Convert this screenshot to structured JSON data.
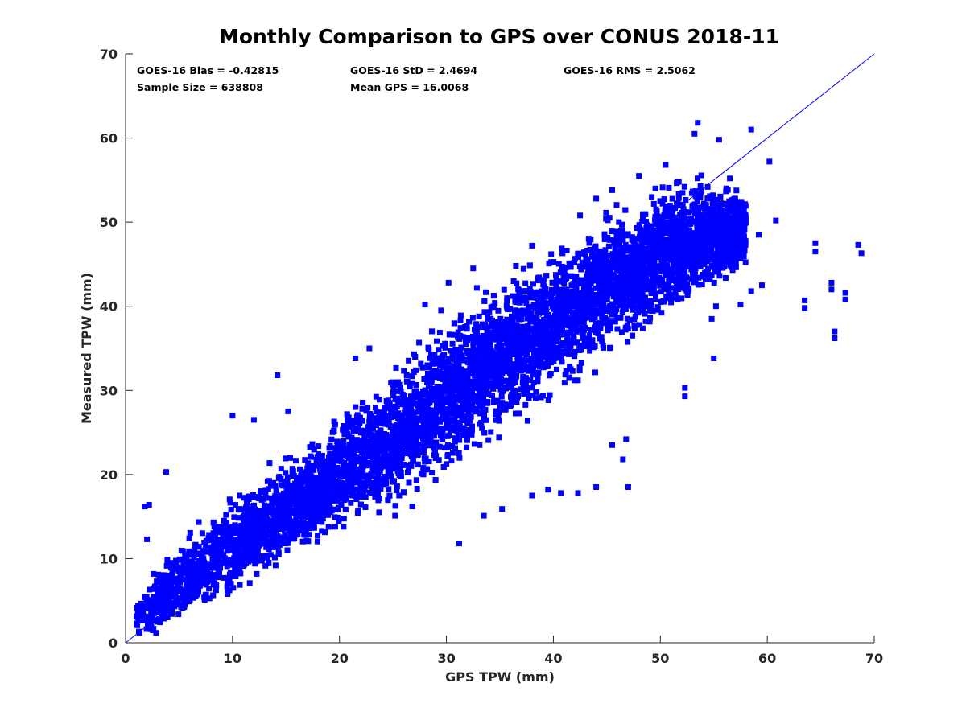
{
  "chart_data": {
    "type": "scatter",
    "title": "Monthly Comparison to GPS over CONUS 2018-11",
    "xlabel": "GPS TPW (mm)",
    "ylabel": "Measured TPW (mm)",
    "xlim": [
      0,
      70
    ],
    "ylim": [
      0,
      70
    ],
    "xticks": [
      "0",
      "10",
      "20",
      "30",
      "40",
      "50",
      "60",
      "70"
    ],
    "yticks": [
      "0",
      "10",
      "20",
      "30",
      "40",
      "50",
      "60",
      "70"
    ],
    "grid": false,
    "marker_color": "#0000ff",
    "line_color": "#0000ff",
    "reference_line": {
      "x": [
        0,
        70
      ],
      "y": [
        0,
        70
      ]
    },
    "stats": {
      "bias": "GOES-16 Bias = -0.42815",
      "std": "GOES-16 StD = 2.4694",
      "rms": "GOES-16 RMS = 2.5062",
      "sample_size": "Sample Size = 638808",
      "mean_gps": "Mean GPS = 16.0068"
    },
    "cloud_spread": [
      [
        1,
        0.2,
        5.5
      ],
      [
        3,
        0.5,
        9.5
      ],
      [
        5,
        1.5,
        12.5
      ],
      [
        8,
        3.0,
        16.5
      ],
      [
        10,
        4.5,
        18.5
      ],
      [
        15,
        8.0,
        23.0
      ],
      [
        20,
        12.0,
        28.0
      ],
      [
        25,
        15.5,
        33.5
      ],
      [
        30,
        19.0,
        40.0
      ],
      [
        35,
        23.0,
        44.5
      ],
      [
        40,
        28.0,
        48.5
      ],
      [
        45,
        32.5,
        52.5
      ],
      [
        50,
        36.5,
        56.0
      ],
      [
        53,
        39.0,
        57.0
      ],
      [
        56,
        41.5,
        55.5
      ],
      [
        58,
        44.0,
        54.0
      ]
    ],
    "outliers": [
      [
        64.5,
        47.5
      ],
      [
        64.5,
        46.5
      ],
      [
        68.5,
        47.3
      ],
      [
        68.8,
        46.3
      ],
      [
        66.0,
        42.8
      ],
      [
        66.0,
        42.0
      ],
      [
        67.3,
        41.6
      ],
      [
        67.3,
        40.8
      ],
      [
        63.5,
        40.7
      ],
      [
        63.5,
        39.8
      ],
      [
        66.3,
        37.0
      ],
      [
        66.3,
        36.2
      ],
      [
        60.8,
        50.2
      ],
      [
        59.2,
        48.5
      ],
      [
        59.5,
        42.5
      ],
      [
        58.5,
        41.8
      ],
      [
        57.5,
        40.2
      ],
      [
        55.2,
        40.0
      ],
      [
        54.8,
        38.5
      ],
      [
        55.0,
        33.8
      ],
      [
        52.3,
        30.3
      ],
      [
        52.3,
        29.3
      ],
      [
        47.0,
        18.5
      ],
      [
        46.5,
        21.8
      ],
      [
        46.8,
        24.2
      ],
      [
        45.5,
        23.5
      ],
      [
        44.0,
        18.5
      ],
      [
        42.3,
        17.8
      ],
      [
        40.7,
        17.8
      ],
      [
        39.5,
        18.2
      ],
      [
        38.0,
        17.5
      ],
      [
        35.2,
        15.9
      ],
      [
        33.5,
        15.1
      ],
      [
        31.2,
        11.8
      ],
      [
        26.8,
        16.2
      ],
      [
        25.2,
        15.1
      ],
      [
        23.7,
        15.5
      ],
      [
        21.0,
        18.0
      ],
      [
        17.5,
        19.5
      ],
      [
        19.5,
        26.3
      ],
      [
        15.2,
        27.5
      ],
      [
        14.2,
        31.8
      ],
      [
        12.0,
        26.5
      ],
      [
        10.0,
        27.0
      ],
      [
        3.8,
        20.3
      ],
      [
        2.2,
        16.4
      ],
      [
        2.0,
        12.3
      ],
      [
        1.8,
        16.2
      ],
      [
        21.5,
        33.8
      ],
      [
        22.8,
        35.0
      ],
      [
        28.0,
        40.2
      ],
      [
        29.5,
        39.5
      ],
      [
        30.2,
        42.8
      ],
      [
        32.5,
        44.5
      ],
      [
        36.5,
        44.8
      ],
      [
        38.0,
        47.2
      ],
      [
        42.5,
        50.8
      ],
      [
        44.0,
        52.8
      ],
      [
        45.5,
        53.8
      ],
      [
        48.0,
        55.5
      ],
      [
        50.5,
        56.8
      ],
      [
        53.2,
        60.5
      ],
      [
        53.5,
        61.8
      ],
      [
        55.5,
        59.8
      ],
      [
        58.5,
        61.0
      ],
      [
        60.2,
        57.2
      ],
      [
        56.5,
        55.2
      ],
      [
        57.0,
        52.8
      ]
    ]
  }
}
